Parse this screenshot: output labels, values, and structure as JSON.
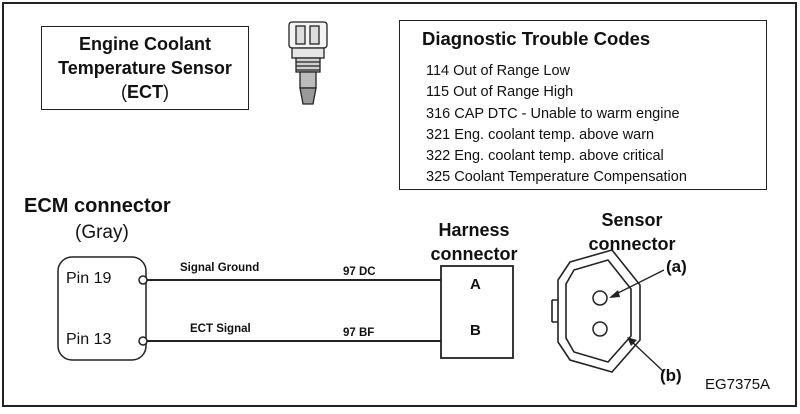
{
  "sensor_box": {
    "line1": "Engine Coolant",
    "line2": "Temperature Sensor",
    "line3_prefix": "(",
    "line3_abbr": "ECT",
    "line3_suffix": ")"
  },
  "dtc": {
    "title": "Diagnostic Trouble Codes",
    "items": [
      "114 Out of Range Low",
      "115 Out of Range High",
      "316 CAP  DTC - Unable to warm engine",
      "321 Eng. coolant temp. above warn",
      "322 Eng. coolant temp. above critical",
      "325 Coolant Temperature Compensation"
    ]
  },
  "ecm": {
    "title": "ECM connector",
    "subtitle": "(Gray)",
    "pins": [
      "Pin 19",
      "Pin 13"
    ]
  },
  "wires": [
    {
      "name": "Signal Ground",
      "code": "97 DC"
    },
    {
      "name": "ECT Signal",
      "code": "97 BF"
    }
  ],
  "harness": {
    "title_line1": "Harness",
    "title_line2": "connector",
    "terminals": [
      "A",
      "B"
    ]
  },
  "sensor_connector": {
    "title_line1": "Sensor",
    "title_line2": "connector",
    "callouts": [
      "(a)",
      "(b)"
    ]
  },
  "figure_code": "EG7375A"
}
